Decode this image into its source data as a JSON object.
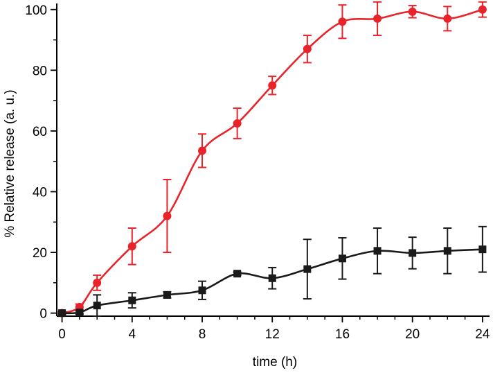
{
  "chart_data": {
    "type": "line",
    "title": "",
    "xlabel": "time (h)",
    "ylabel": "% Relative release (a. u.)",
    "xlim": [
      -0.3,
      24.4
    ],
    "ylim": [
      -1,
      102
    ],
    "xticks": [
      0,
      4,
      8,
      12,
      16,
      20,
      24
    ],
    "yticks": [
      0,
      20,
      40,
      60,
      80,
      100
    ],
    "x_minor_step": 1,
    "y_minor_step": 10,
    "grid": false,
    "series": [
      {
        "name": "red series",
        "color": "#e8242a",
        "marker": "circle",
        "x": [
          0,
          1,
          2,
          4,
          6,
          8,
          10,
          12,
          14,
          16,
          18,
          20,
          22,
          24
        ],
        "values": [
          0,
          2,
          10,
          22,
          32,
          53.5,
          62.5,
          75,
          87,
          96,
          97,
          99.3,
          97,
          100
        ],
        "errors": [
          0.5,
          1,
          2.5,
          6,
          12,
          5.5,
          5,
          3,
          4.5,
          5.5,
          5.5,
          2,
          4,
          2.5
        ]
      },
      {
        "name": "black series",
        "color": "#1a1a1a",
        "marker": "square",
        "x": [
          0,
          1,
          2,
          4,
          6,
          8,
          10,
          12,
          14,
          16,
          18,
          20,
          22,
          24
        ],
        "values": [
          0,
          0.2,
          2.5,
          4.2,
          6,
          7.5,
          13,
          11.5,
          14.5,
          18,
          20.5,
          19.8,
          20.5,
          21
        ],
        "errors": [
          0.3,
          0.5,
          3.5,
          2.5,
          1,
          3,
          0.5,
          3.5,
          9.8,
          6.8,
          7.5,
          5.2,
          7.5,
          7.5
        ]
      }
    ]
  }
}
